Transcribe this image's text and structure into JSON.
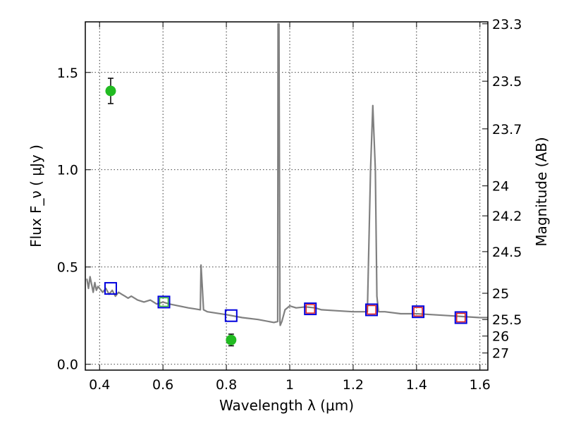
{
  "chart_data": {
    "type": "scatter",
    "title": "",
    "xlabel": "Wavelength  λ (μm)",
    "ylabel": "Flux  F_ν  ( μJy )",
    "y2label": "Magnitude (AB)",
    "xlim": [
      0.355,
      1.625
    ],
    "ylim": [
      -0.03,
      1.76
    ],
    "grid": true,
    "x_ticks": [
      {
        "value": 0.4,
        "label": "0.4"
      },
      {
        "value": 0.6,
        "label": "0.6"
      },
      {
        "value": 0.8,
        "label": "0.8"
      },
      {
        "value": 1.0,
        "label": "1"
      },
      {
        "value": 1.2,
        "label": "1.2"
      },
      {
        "value": 1.4,
        "label": "1.4"
      },
      {
        "value": 1.6,
        "label": "1.6"
      }
    ],
    "y_ticks": [
      {
        "value": 0.0,
        "label": "0.0"
      },
      {
        "value": 0.5,
        "label": "0.5"
      },
      {
        "value": 1.0,
        "label": "1.0"
      },
      {
        "value": 1.5,
        "label": "1.5"
      }
    ],
    "y2_ticks": [
      {
        "label": "23.3",
        "flux": 1.75
      },
      {
        "label": "23.5",
        "flux": 1.455
      },
      {
        "label": "23.7",
        "flux": 1.21
      },
      {
        "label": "24",
        "flux": 0.917
      },
      {
        "label": "24.2",
        "flux": 0.763
      },
      {
        "label": "24.5",
        "flux": 0.579
      },
      {
        "label": "25",
        "flux": 0.365
      },
      {
        "label": "25.5",
        "flux": 0.23
      },
      {
        "label": "26",
        "flux": 0.145
      },
      {
        "label": "27",
        "flux": 0.058
      }
    ],
    "series": [
      {
        "kind": "line",
        "color": "#808080",
        "x": [
          0.36,
          0.365,
          0.37,
          0.375,
          0.38,
          0.385,
          0.39,
          0.395,
          0.4,
          0.41,
          0.42,
          0.43,
          0.44,
          0.45,
          0.46,
          0.47,
          0.48,
          0.49,
          0.5,
          0.52,
          0.54,
          0.56,
          0.58,
          0.6,
          0.62,
          0.65,
          0.68,
          0.7,
          0.718,
          0.72,
          0.724,
          0.728,
          0.74,
          0.76,
          0.8,
          0.85,
          0.9,
          0.95,
          0.962,
          0.963,
          0.966,
          0.969,
          0.97,
          0.975,
          0.985,
          1.0,
          1.02,
          1.05,
          1.08,
          1.1,
          1.15,
          1.2,
          1.24,
          1.245,
          1.255,
          1.262,
          1.27,
          1.275,
          1.28,
          1.3,
          1.35,
          1.4,
          1.45,
          1.5,
          1.55,
          1.6,
          1.625
        ],
        "y": [
          0.44,
          0.39,
          0.45,
          0.41,
          0.37,
          0.42,
          0.38,
          0.4,
          0.39,
          0.37,
          0.39,
          0.36,
          0.38,
          0.35,
          0.37,
          0.36,
          0.35,
          0.34,
          0.35,
          0.33,
          0.32,
          0.33,
          0.31,
          0.32,
          0.31,
          0.3,
          0.29,
          0.285,
          0.28,
          0.51,
          0.4,
          0.28,
          0.27,
          0.265,
          0.255,
          0.24,
          0.23,
          0.215,
          0.22,
          1.75,
          1.75,
          0.22,
          0.2,
          0.22,
          0.28,
          0.3,
          0.29,
          0.295,
          0.29,
          0.28,
          0.275,
          0.27,
          0.27,
          0.27,
          1.0,
          1.33,
          1.0,
          0.35,
          0.27,
          0.27,
          0.26,
          0.26,
          0.255,
          0.25,
          0.245,
          0.24,
          0.24
        ]
      },
      {
        "kind": "markers",
        "name": "model_photometry_blue",
        "marker": "square-open",
        "color": "#0000dd",
        "x": [
          0.435,
          0.603,
          0.815,
          1.065,
          1.258,
          1.405,
          1.54
        ],
        "y": [
          0.39,
          0.32,
          0.25,
          0.285,
          0.28,
          0.27,
          0.24
        ]
      },
      {
        "kind": "markers",
        "name": "model_photometry_inner",
        "marker": "square-open-small",
        "x": [
          0.603,
          1.065,
          1.258,
          1.405,
          1.54
        ],
        "y": [
          0.32,
          0.285,
          0.28,
          0.27,
          0.24
        ],
        "colors": [
          "#33bb33",
          "#dd2222",
          "#dd2222",
          "#dd2222",
          "#dd2222"
        ]
      },
      {
        "kind": "points",
        "name": "observed",
        "marker": "circle",
        "color": "#22bb22",
        "x": [
          0.435,
          0.815
        ],
        "y": [
          1.405,
          0.125
        ],
        "yerr": [
          0.065,
          0.03
        ]
      }
    ]
  }
}
